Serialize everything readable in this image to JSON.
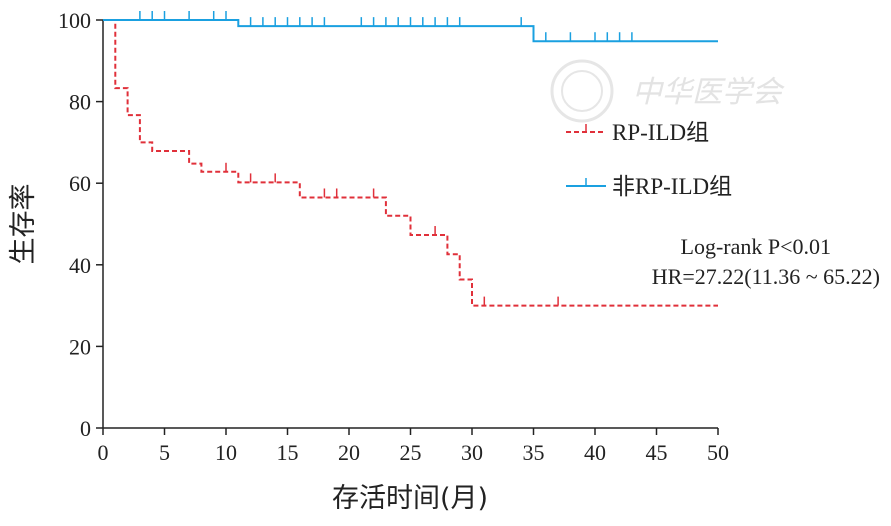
{
  "chart_data": {
    "type": "line",
    "subtype": "kaplan-meier survival curve",
    "xlabel": "存活时间(月)",
    "ylabel": "生存率",
    "xlim": [
      0,
      50
    ],
    "ylim": [
      0,
      100
    ],
    "x_ticks": [
      "0",
      "5",
      "10",
      "15",
      "20",
      "25",
      "30",
      "35",
      "40",
      "45",
      "50"
    ],
    "y_ticks": [
      "0",
      "20",
      "40",
      "60",
      "80",
      "100"
    ],
    "grid": false,
    "legend_position": "right",
    "series": [
      {
        "name": "RP-ILD组",
        "color": "#e0303a",
        "line_style": "dashed",
        "steps": [
          [
            0,
            100
          ],
          [
            1,
            100
          ],
          [
            1,
            83.3
          ],
          [
            2,
            83.3
          ],
          [
            2,
            76.7
          ],
          [
            3,
            76.7
          ],
          [
            3,
            70
          ],
          [
            4,
            70
          ],
          [
            4,
            67.9
          ],
          [
            7,
            67.9
          ],
          [
            7,
            64.8
          ],
          [
            8,
            64.8
          ],
          [
            8,
            62.8
          ],
          [
            11,
            62.8
          ],
          [
            11,
            60.2
          ],
          [
            16,
            60.2
          ],
          [
            16,
            56.5
          ],
          [
            23,
            56.5
          ],
          [
            23,
            52
          ],
          [
            25,
            52
          ],
          [
            25,
            47.3
          ],
          [
            28,
            47.3
          ],
          [
            28,
            42.6
          ],
          [
            29,
            42.6
          ],
          [
            29,
            36.4
          ],
          [
            30,
            36.4
          ],
          [
            30,
            30
          ],
          [
            50,
            30
          ]
        ],
        "censored": [
          [
            10,
            62.8
          ],
          [
            12,
            60.2
          ],
          [
            14,
            60.2
          ],
          [
            18,
            56.5
          ],
          [
            19,
            56.5
          ],
          [
            22,
            56.5
          ],
          [
            27,
            47.3
          ],
          [
            31,
            30
          ],
          [
            37,
            30
          ]
        ]
      },
      {
        "name": "非RP-ILD组",
        "color": "#1aa0e0",
        "line_style": "solid",
        "steps": [
          [
            0,
            100
          ],
          [
            11,
            100
          ],
          [
            11,
            98.5
          ],
          [
            35,
            98.5
          ],
          [
            35,
            94.8
          ],
          [
            50,
            94.8
          ]
        ],
        "censored": [
          [
            3,
            100
          ],
          [
            4,
            100
          ],
          [
            5,
            100
          ],
          [
            7,
            100
          ],
          [
            9,
            100
          ],
          [
            10,
            100
          ],
          [
            12,
            98.5
          ],
          [
            13,
            98.5
          ],
          [
            14,
            98.5
          ],
          [
            15,
            98.5
          ],
          [
            16,
            98.5
          ],
          [
            17,
            98.5
          ],
          [
            18,
            98.5
          ],
          [
            21,
            98.5
          ],
          [
            22,
            98.5
          ],
          [
            23,
            98.5
          ],
          [
            24,
            98.5
          ],
          [
            25,
            98.5
          ],
          [
            26,
            98.5
          ],
          [
            27,
            98.5
          ],
          [
            28,
            98.5
          ],
          [
            29,
            98.5
          ],
          [
            34,
            98.5
          ],
          [
            36,
            94.8
          ],
          [
            38,
            94.8
          ],
          [
            40,
            94.8
          ],
          [
            41,
            94.8
          ],
          [
            42,
            94.8
          ],
          [
            43,
            94.8
          ]
        ]
      }
    ],
    "annotations": {
      "logrank": "Log-rank P<0.01",
      "hr": "HR=27.22(11.36 ~ 65.22)"
    }
  },
  "watermark": {
    "text": "中华医学会"
  }
}
